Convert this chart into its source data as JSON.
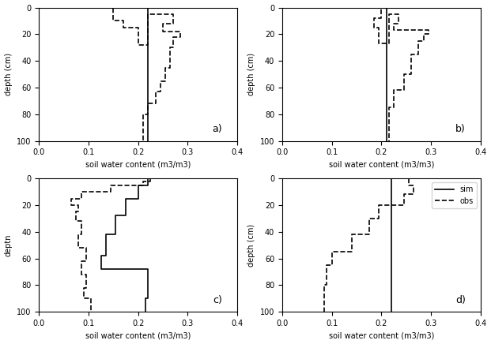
{
  "panels": [
    {
      "label": "a)",
      "sim_x": [
        0.22,
        0.22,
        0.22,
        0.22,
        0.22,
        0.22
      ],
      "sim_y": [
        0,
        30,
        30,
        63,
        63,
        100
      ],
      "obs_x": [
        0.22,
        0.15,
        0.15,
        0.17,
        0.17,
        0.2,
        0.2,
        0.22,
        0.22,
        0.27,
        0.27,
        0.25,
        0.25,
        0.285,
        0.285,
        0.27,
        0.27,
        0.265,
        0.265,
        0.255,
        0.255,
        0.245,
        0.245,
        0.235,
        0.235,
        0.22,
        0.22,
        0.21,
        0.21
      ],
      "obs_y": [
        0,
        0,
        10,
        10,
        15,
        15,
        28,
        28,
        5,
        5,
        12,
        12,
        18,
        18,
        22,
        22,
        30,
        30,
        45,
        45,
        55,
        55,
        63,
        63,
        72,
        72,
        80,
        80,
        100
      ],
      "xlabel": "soil water content (m3/m3)",
      "ylabel": "depth (cm)"
    },
    {
      "label": "b)",
      "sim_x": [
        0.21,
        0.21,
        0.21,
        0.21,
        0.21,
        0.21
      ],
      "sim_y": [
        0,
        28,
        28,
        62,
        62,
        100
      ],
      "obs_x": [
        0.21,
        0.2,
        0.2,
        0.185,
        0.185,
        0.195,
        0.195,
        0.215,
        0.215,
        0.235,
        0.235,
        0.225,
        0.225,
        0.295,
        0.295,
        0.285,
        0.285,
        0.275,
        0.275,
        0.26,
        0.26,
        0.245,
        0.245,
        0.225,
        0.225,
        0.215,
        0.215
      ],
      "obs_y": [
        0,
        0,
        8,
        8,
        15,
        15,
        27,
        27,
        5,
        5,
        12,
        12,
        17,
        17,
        20,
        20,
        25,
        25,
        35,
        35,
        50,
        50,
        62,
        62,
        75,
        75,
        100
      ],
      "xlabel": "soil water content (m3/m3)",
      "ylabel": "depth (cm)"
    },
    {
      "label": "c)",
      "sim_x": [
        0.22,
        0.22,
        0.2,
        0.2,
        0.175,
        0.175,
        0.155,
        0.155,
        0.135,
        0.135,
        0.125,
        0.125,
        0.22,
        0.22,
        0.215,
        0.215
      ],
      "sim_y": [
        0,
        5,
        5,
        15,
        15,
        28,
        28,
        42,
        42,
        58,
        58,
        68,
        68,
        90,
        90,
        100
      ],
      "obs_x": [
        0.225,
        0.225,
        0.21,
        0.21,
        0.145,
        0.145,
        0.085,
        0.085,
        0.065,
        0.065,
        0.08,
        0.08,
        0.075,
        0.075,
        0.085,
        0.085,
        0.08,
        0.08,
        0.095,
        0.095,
        0.085,
        0.085,
        0.095,
        0.095,
        0.09,
        0.09,
        0.105,
        0.105
      ],
      "obs_y": [
        0,
        2,
        2,
        5,
        5,
        10,
        10,
        15,
        15,
        20,
        20,
        25,
        25,
        32,
        32,
        42,
        42,
        52,
        52,
        62,
        62,
        72,
        72,
        82,
        82,
        90,
        90,
        100
      ],
      "xlabel": "soil water content (m3/m3)",
      "ylabel": "deptn"
    },
    {
      "label": "d)",
      "sim_x": [
        0.22,
        0.22,
        0.22,
        0.22,
        0.22,
        0.22
      ],
      "sim_y": [
        0,
        25,
        25,
        62,
        62,
        100
      ],
      "obs_x": [
        0.255,
        0.255,
        0.265,
        0.265,
        0.245,
        0.245,
        0.195,
        0.195,
        0.175,
        0.175,
        0.14,
        0.14,
        0.1,
        0.1,
        0.09,
        0.09,
        0.085,
        0.085
      ],
      "obs_y": [
        0,
        5,
        5,
        12,
        12,
        20,
        20,
        30,
        30,
        42,
        42,
        55,
        55,
        65,
        65,
        80,
        80,
        100
      ],
      "xlabel": "soil water content (m3/m3)",
      "ylabel": "depth (cm)"
    }
  ],
  "xlim": [
    0,
    0.4
  ],
  "ylim": [
    100,
    0
  ],
  "xticks": [
    0,
    0.1,
    0.2,
    0.3,
    0.4
  ],
  "yticks": [
    0,
    20,
    40,
    60,
    80,
    100
  ],
  "sim_color": "black",
  "obs_color": "black",
  "sim_linestyle": "-",
  "obs_linestyle": "--",
  "linewidth": 1.2,
  "legend_labels": [
    "sim",
    "obs"
  ],
  "legend_loc": "upper right",
  "legend_panel": 3
}
